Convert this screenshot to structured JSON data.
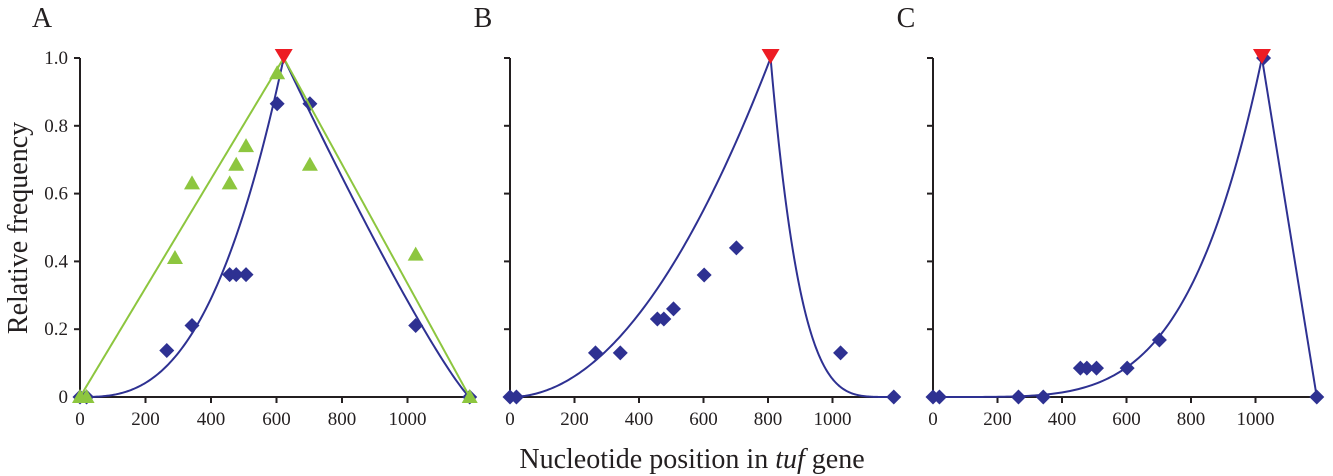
{
  "figure": {
    "ylabel": "Relative frequency",
    "xlabel_prefix": "Nucleotide position in ",
    "xlabel_italic": "tuf",
    "xlabel_suffix": " gene"
  },
  "colors": {
    "blue": "#2e3192",
    "green": "#8dc63f",
    "red": "#ed1c24",
    "axis": "#231f20"
  },
  "chart_data": [
    {
      "type": "scatter",
      "panel": "A",
      "xlim": [
        0,
        1190
      ],
      "ylim": [
        0,
        1.0
      ],
      "xticks": [
        0,
        200,
        400,
        600,
        800,
        1000
      ],
      "yticks": [
        0,
        0.2,
        0.4,
        0.6,
        0.8,
        1.0
      ],
      "ytick_labels": [
        "0",
        "0.2",
        "0.4",
        "0.6",
        "0.8",
        "1.0"
      ],
      "peak": {
        "x": 622,
        "y": 1.0
      },
      "series": [
        {
          "marker": "diamond",
          "color": "#2e3192",
          "points": [
            [
              0,
              0
            ],
            [
              20,
              0
            ],
            [
              265,
              0.137
            ],
            [
              342,
              0.211
            ],
            [
              457,
              0.361
            ],
            [
              477,
              0.361
            ],
            [
              507,
              0.361
            ],
            [
              602,
              0.865
            ],
            [
              702,
              0.865
            ],
            [
              1025,
              0.211
            ],
            [
              1190,
              0
            ]
          ],
          "curve": {
            "left_exponent": 2.8,
            "right_exponent": 1.15
          }
        },
        {
          "marker": "triangle",
          "color": "#8dc63f",
          "points": [
            [
              0,
              0
            ],
            [
              20,
              0
            ],
            [
              290,
              0.41
            ],
            [
              342,
              0.63
            ],
            [
              457,
              0.63
            ],
            [
              477,
              0.685
            ],
            [
              507,
              0.74
            ],
            [
              602,
              0.955
            ],
            [
              702,
              0.685
            ],
            [
              1025,
              0.42
            ],
            [
              1190,
              0
            ]
          ],
          "curve": {
            "left_exponent": 1.0,
            "right_exponent": 1.0
          }
        }
      ]
    },
    {
      "type": "scatter",
      "panel": "B",
      "xlim": [
        0,
        1190
      ],
      "ylim": [
        0,
        1.0
      ],
      "xticks": [
        0,
        200,
        400,
        600,
        800,
        1000
      ],
      "peak": {
        "x": 808,
        "y": 1.0
      },
      "series": [
        {
          "marker": "diamond",
          "color": "#2e3192",
          "points": [
            [
              0,
              0
            ],
            [
              20,
              0
            ],
            [
              265,
              0.13
            ],
            [
              342,
              0.13
            ],
            [
              457,
              0.23
            ],
            [
              477,
              0.23
            ],
            [
              507,
              0.26
            ],
            [
              602,
              0.36
            ],
            [
              702,
              0.44
            ],
            [
              1025,
              0.13
            ],
            [
              1190,
              0
            ]
          ],
          "curve": {
            "left_exponent": 2.0,
            "right_exponent": 4.2
          }
        }
      ]
    },
    {
      "type": "scatter",
      "panel": "C",
      "xlim": [
        0,
        1190
      ],
      "ylim": [
        0,
        1.0
      ],
      "xticks": [
        0,
        200,
        400,
        600,
        800,
        1000
      ],
      "peak": {
        "x": 1020,
        "y": 1.0
      },
      "series": [
        {
          "marker": "diamond",
          "color": "#2e3192",
          "points": [
            [
              0,
              0
            ],
            [
              20,
              0
            ],
            [
              265,
              0
            ],
            [
              342,
              0
            ],
            [
              457,
              0.085
            ],
            [
              477,
              0.085
            ],
            [
              507,
              0.085
            ],
            [
              602,
              0.085
            ],
            [
              702,
              0.168
            ],
            [
              1025,
              1.0
            ],
            [
              1190,
              0
            ]
          ],
          "curve": {
            "left_exponent": 4.6,
            "right_exponent": 1.0
          }
        }
      ]
    }
  ]
}
